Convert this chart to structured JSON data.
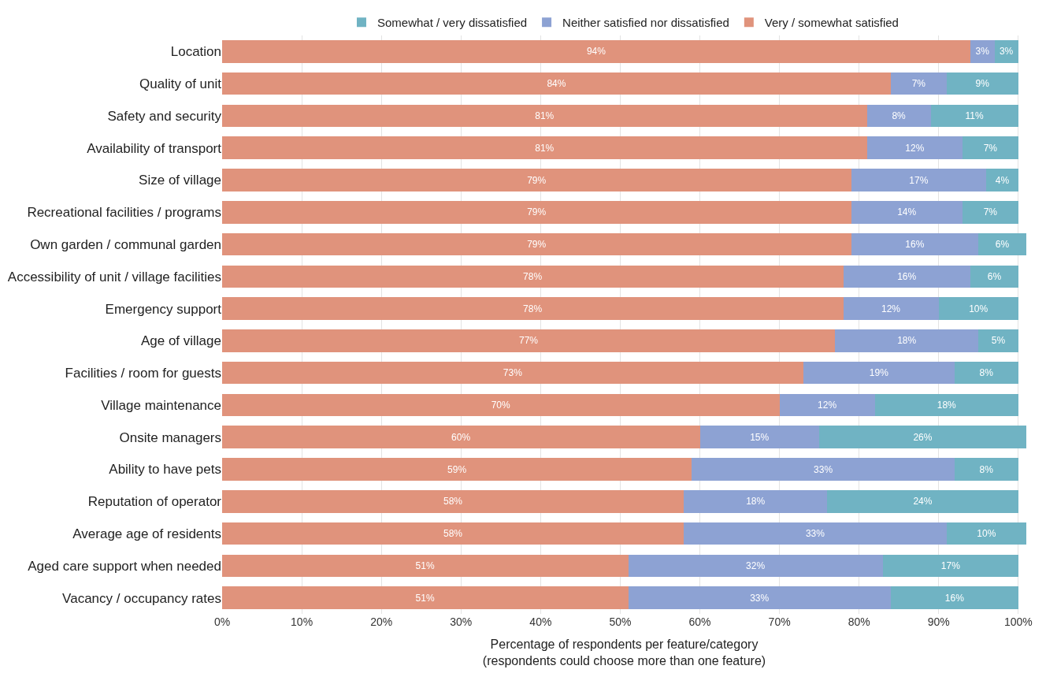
{
  "chart_data": {
    "type": "bar",
    "orientation": "horizontal",
    "stacked": true,
    "categories": [
      "Location",
      "Quality of unit",
      "Safety and security",
      "Availability of transport",
      "Size of village",
      "Recreational facilities / programs",
      "Own garden / communal garden",
      "Accessibility of unit / village facilities",
      "Emergency support",
      "Age of village",
      "Facilities / room for guests",
      "Village maintenance",
      "Onsite managers",
      "Ability to have pets",
      "Reputation of operator",
      "Average age of residents",
      "Aged care support when needed",
      "Vacancy / occupancy rates"
    ],
    "series": [
      {
        "name": "Very / somewhat satisfied",
        "color": "#e0937c",
        "values": [
          94,
          84,
          81,
          81,
          79,
          79,
          79,
          78,
          78,
          77,
          73,
          70,
          60,
          59,
          58,
          58,
          51,
          51
        ],
        "value_labels": [
          "94%",
          "84%",
          "81%",
          "81%",
          "79%",
          "79%",
          "79%",
          "78%",
          "78%",
          "77%",
          "73%",
          "70%",
          "60%",
          "59%",
          "58%",
          "58%",
          "51%",
          "51%"
        ]
      },
      {
        "name": "Neither satisfied nor dissatisfied",
        "color": "#8da2d3",
        "values": [
          3,
          7,
          8,
          12,
          17,
          14,
          16,
          16,
          12,
          18,
          19,
          12,
          15,
          33,
          18,
          33,
          32,
          33
        ],
        "value_labels": [
          "3%",
          "7%",
          "8%",
          "12%",
          "17%",
          "14%",
          "16%",
          "16%",
          "12%",
          "18%",
          "19%",
          "12%",
          "15%",
          "33%",
          "18%",
          "33%",
          "32%",
          "33%"
        ]
      },
      {
        "name": "Somewhat / very dissatisfied",
        "color": "#70b3c3",
        "values": [
          3,
          9,
          11,
          7,
          4,
          7,
          6,
          6,
          10,
          5,
          8,
          18,
          26,
          8,
          24,
          10,
          17,
          16
        ],
        "value_labels": [
          "3%",
          "9%",
          "11%",
          "7%",
          "4%",
          "7%",
          "6%",
          "6%",
          "10%",
          "5%",
          "8%",
          "18%",
          "26%",
          "8%",
          "24%",
          "10%",
          "17%",
          "16%"
        ]
      }
    ],
    "xlabel": "Percentage of respondents per feature/category\n(respondents could choose more than one feature)",
    "xlim": [
      0,
      101
    ],
    "xticks": [
      {
        "value": 0,
        "label": "0%"
      },
      {
        "value": 10,
        "label": "10%"
      },
      {
        "value": 20,
        "label": "20%"
      },
      {
        "value": 30,
        "label": "30%"
      },
      {
        "value": 40,
        "label": "40%"
      },
      {
        "value": 50,
        "label": "50%"
      },
      {
        "value": 60,
        "label": "60%"
      },
      {
        "value": 70,
        "label": "70%"
      },
      {
        "value": 80,
        "label": "80%"
      },
      {
        "value": 90,
        "label": "90%"
      },
      {
        "value": 100,
        "label": "100%"
      }
    ],
    "grid": "x",
    "legend": "top"
  }
}
